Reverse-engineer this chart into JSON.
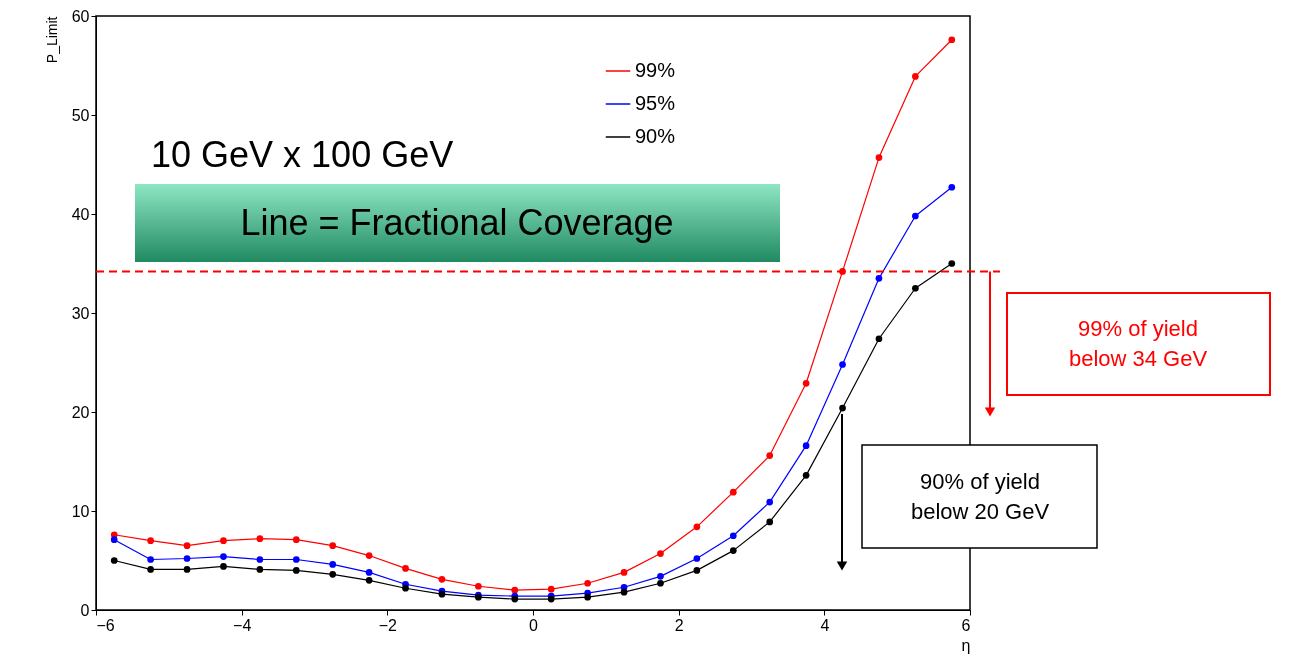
{
  "chart_data": {
    "type": "line",
    "xlabel": "η",
    "ylabel": "P_Limit",
    "x": [
      -5.75,
      -5.25,
      -4.75,
      -4.25,
      -3.75,
      -3.25,
      -2.75,
      -2.25,
      -1.75,
      -1.25,
      -0.75,
      -0.25,
      0.25,
      0.75,
      1.25,
      1.75,
      2.25,
      2.75,
      3.25,
      3.75,
      4.25,
      4.75,
      5.25,
      5.75
    ],
    "series": [
      {
        "name": "99%",
        "color": "#ff0000",
        "values": [
          7.6,
          7.0,
          6.5,
          7.0,
          7.2,
          7.1,
          6.5,
          5.5,
          4.2,
          3.1,
          2.4,
          2.0,
          2.1,
          2.7,
          3.8,
          5.7,
          8.4,
          11.9,
          15.6,
          22.9,
          34.2,
          45.7,
          53.9,
          57.6
        ]
      },
      {
        "name": "95%",
        "color": "#0000ff",
        "values": [
          7.1,
          5.1,
          5.2,
          5.4,
          5.1,
          5.1,
          4.6,
          3.8,
          2.6,
          1.9,
          1.5,
          1.4,
          1.4,
          1.7,
          2.3,
          3.4,
          5.2,
          7.5,
          10.9,
          16.6,
          24.8,
          33.5,
          39.8,
          42.7
        ]
      },
      {
        "name": "90%",
        "color": "#000000",
        "values": [
          5.0,
          4.1,
          4.1,
          4.4,
          4.1,
          4.0,
          3.6,
          3.0,
          2.2,
          1.6,
          1.3,
          1.1,
          1.1,
          1.3,
          1.8,
          2.7,
          4.0,
          6.0,
          8.9,
          13.6,
          20.4,
          27.4,
          32.5,
          35.0
        ]
      }
    ],
    "xlim": [
      -6,
      6
    ],
    "xticks": [
      -6,
      -4,
      -2,
      0,
      2,
      4,
      6
    ],
    "ylim": [
      0,
      60
    ],
    "yticks": [
      0,
      10,
      20,
      30,
      40,
      50,
      60
    ],
    "ref_lines": [
      {
        "axis": "y",
        "value": 34.2,
        "label": "99% of yield below 34 GeV",
        "color": "#ff0000",
        "line_style": "dashed"
      }
    ],
    "annotations": [
      "10 GeV  x 100 GeV",
      "Line = Fractional Coverage",
      "90% of yield below 20 GeV"
    ],
    "legend": "top right",
    "marker": "circle",
    "line_style": "solid",
    "grid": false
  }
}
